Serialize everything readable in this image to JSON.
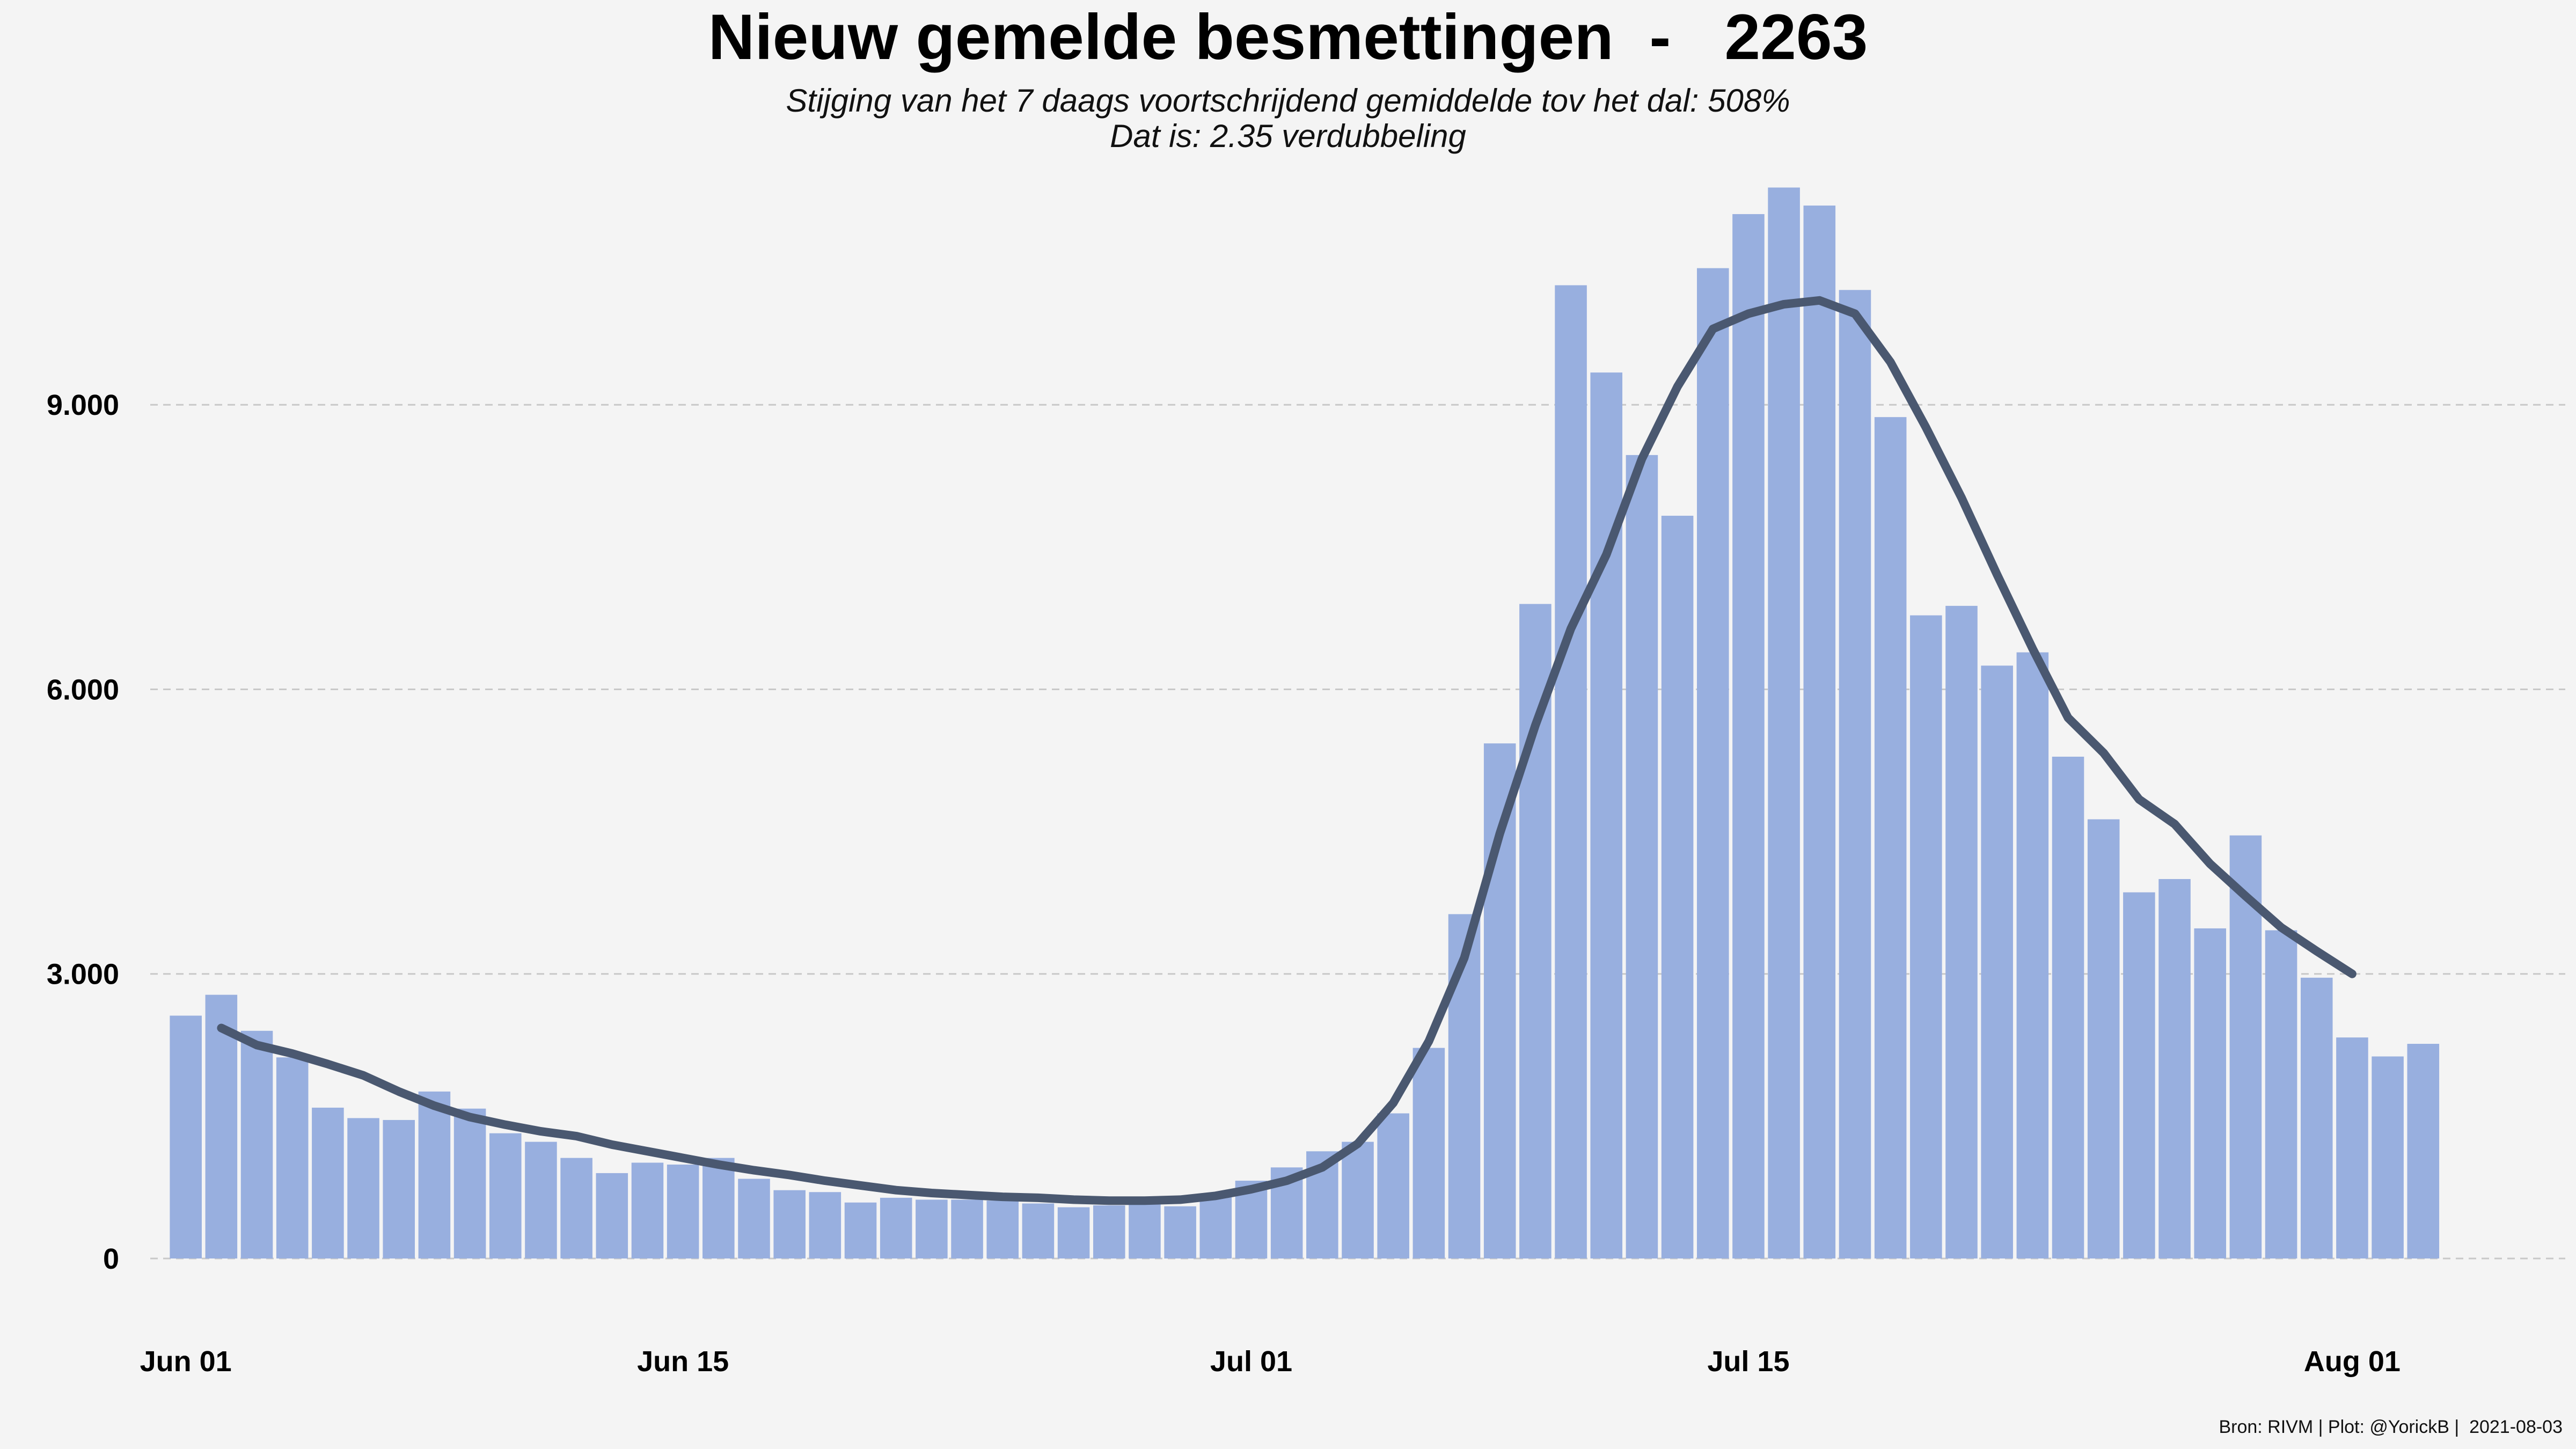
{
  "chart_data": {
    "type": "bar",
    "title": "Nieuw gemelde besmettingen  -   2263",
    "subtitle_lines": [
      "Stijging van het 7 daags voortschrijdend gemiddelde tov het dal: 508%",
      "Dat is: 2.35 verdubbeling"
    ],
    "caption": "Bron: RIVM | Plot: @YorickB |  2021-08-03",
    "xlabel": "",
    "ylabel": "",
    "x_start": "2021-06-01",
    "x_end": "2021-08-04",
    "xlim": [
      "2021-05-31",
      "2021-08-07"
    ],
    "ylim": [
      0,
      11400
    ],
    "yticks": [
      0,
      3000,
      6000,
      9000
    ],
    "ytick_labels": [
      "0",
      "3.000",
      "6.000",
      "9.000"
    ],
    "xticks": [
      "2021-06-01",
      "2021-06-15",
      "2021-07-01",
      "2021-07-15",
      "2021-08-01"
    ],
    "xtick_labels": [
      "Jun 01",
      "Jun 15",
      "Jul 01",
      "Jul 15",
      "Aug 01"
    ],
    "grid": "horizontal dashed",
    "legend": "none",
    "colors": {
      "bars": "#98afdf",
      "line": "#4a5870",
      "background": "#f4f4f4",
      "grid": "#c8c8c8"
    },
    "series": [
      {
        "type": "bar",
        "values": [
          2560,
          2780,
          2400,
          2120,
          1590,
          1480,
          1460,
          1760,
          1580,
          1320,
          1230,
          1060,
          900,
          1010,
          990,
          1060,
          840,
          720,
          700,
          590,
          640,
          620,
          620,
          610,
          580,
          540,
          560,
          590,
          550,
          670,
          820,
          960,
          1130,
          1230,
          1530,
          2220,
          3630,
          5430,
          6900,
          10260,
          9340,
          8470,
          7830,
          10440,
          11010,
          11290,
          11100,
          10210,
          8870,
          6780,
          6880,
          6250,
          6390,
          5290,
          4630,
          3860,
          4000,
          3480,
          4460,
          3460,
          2960,
          2330,
          2130,
          2263
        ]
      },
      {
        "type": "line",
        "x_start": "2021-06-02",
        "values": [
          2430,
          2250,
          2160,
          2050,
          1930,
          1760,
          1610,
          1490,
          1410,
          1340,
          1290,
          1200,
          1130,
          1060,
          990,
          930,
          880,
          820,
          770,
          720,
          690,
          670,
          650,
          640,
          620,
          610,
          610,
          620,
          660,
          730,
          820,
          960,
          1210,
          1640,
          2290,
          3170,
          4480,
          5620,
          6640,
          7420,
          8430,
          9190,
          9800,
          9960,
          10060,
          10100,
          9960,
          9450,
          8760,
          8020,
          7210,
          6430,
          5700,
          5330,
          4840,
          4580,
          4160,
          3820,
          3490,
          3240,
          3000
        ]
      }
    ]
  }
}
